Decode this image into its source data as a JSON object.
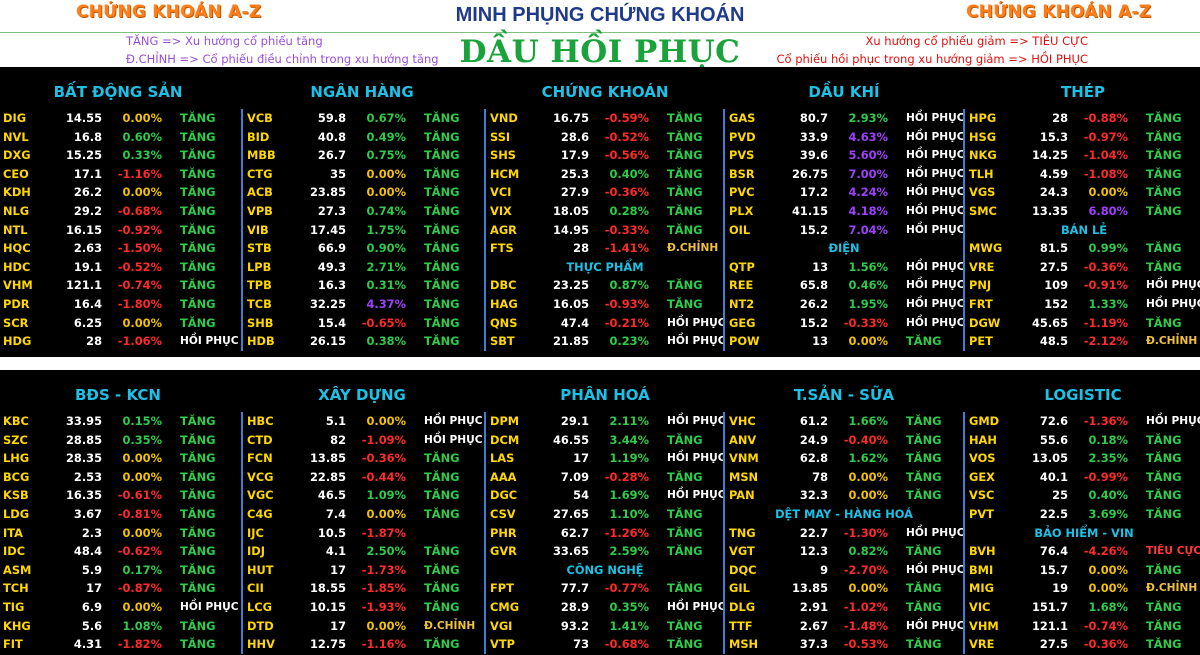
{
  "header": {
    "brand_left": "CHỨNG KHOÁN A-Z",
    "brand_right": "CHỨNG KHOÁN A-Z",
    "title": "MINH PHỤNG CHỨNG KHOÁN",
    "big_title": "DẦU HỒI PHỤC",
    "legend_left_1": "TĂNG => Xu hướng cổ phiếu tăng",
    "legend_left_2": "Đ.CHỈNH => Cổ phiếu điều chỉnh trong xu hướng tăng",
    "legend_right_1": "Xu hướng cổ phiếu giảm => TIÊU CỰC",
    "legend_right_2": "Cổ phiếu hồi phục trong xu hướng giảm => HỒI PHỤC"
  },
  "colors": {
    "brand": "#ff7d1a",
    "title": "#1f3a8a",
    "big_title": "#1aa33a",
    "positive": "#2ecc4a",
    "negative": "#ff2a2a",
    "zero": "#f2c200",
    "strong": "#a040ff",
    "ticker": "#ffd700",
    "subsection": "#1ec0e6"
  },
  "panels": [
    {
      "columns": [
        {
          "header": "BẤT ĐỘNG SẢN",
          "items": [
            {
              "t": "DIG",
              "p": "14.55",
              "c": "0.00%",
              "s": "TĂNG"
            },
            {
              "t": "NVL",
              "p": "16.8",
              "c": "0.60%",
              "s": "TĂNG"
            },
            {
              "t": "DXG",
              "p": "15.25",
              "c": "0.33%",
              "s": "TĂNG"
            },
            {
              "t": "CEO",
              "p": "17.1",
              "c": "-1.16%",
              "s": "TĂNG"
            },
            {
              "t": "KDH",
              "p": "26.2",
              "c": "0.00%",
              "s": "TĂNG"
            },
            {
              "t": "NLG",
              "p": "29.2",
              "c": "-0.68%",
              "s": "TĂNG"
            },
            {
              "t": "NTL",
              "p": "16.15",
              "c": "-0.92%",
              "s": "TĂNG"
            },
            {
              "t": "HQC",
              "p": "2.63",
              "c": "-1.50%",
              "s": "TĂNG"
            },
            {
              "t": "HDC",
              "p": "19.1",
              "c": "-0.52%",
              "s": "TĂNG"
            },
            {
              "t": "VHM",
              "p": "121.1",
              "c": "-0.74%",
              "s": "TĂNG"
            },
            {
              "t": "PDR",
              "p": "16.4",
              "c": "-1.80%",
              "s": "TĂNG"
            },
            {
              "t": "SCR",
              "p": "6.25",
              "c": "0.00%",
              "s": "TĂNG"
            },
            {
              "t": "HDG",
              "p": "28",
              "c": "-1.06%",
              "s": "HỒI PHỤC"
            }
          ]
        },
        {
          "header": "NGÂN HÀNG",
          "items": [
            {
              "t": "VCB",
              "p": "59.8",
              "c": "0.67%",
              "s": "TĂNG"
            },
            {
              "t": "BID",
              "p": "40.8",
              "c": "0.49%",
              "s": "TĂNG"
            },
            {
              "t": "MBB",
              "p": "26.7",
              "c": "0.75%",
              "s": "TĂNG"
            },
            {
              "t": "CTG",
              "p": "35",
              "c": "0.00%",
              "s": "TĂNG"
            },
            {
              "t": "ACB",
              "p": "23.85",
              "c": "0.00%",
              "s": "TĂNG"
            },
            {
              "t": "VPB",
              "p": "27.3",
              "c": "0.74%",
              "s": "TĂNG"
            },
            {
              "t": "VIB",
              "p": "17.45",
              "c": "1.75%",
              "s": "TĂNG"
            },
            {
              "t": "STB",
              "p": "66.9",
              "c": "0.90%",
              "s": "TĂNG"
            },
            {
              "t": "LPB",
              "p": "49.3",
              "c": "2.71%",
              "s": "TĂNG"
            },
            {
              "t": "TPB",
              "p": "16.3",
              "c": "0.31%",
              "s": "TĂNG"
            },
            {
              "t": "TCB",
              "p": "32.25",
              "c": "4.37%",
              "s": "TĂNG"
            },
            {
              "t": "SHB",
              "p": "15.4",
              "c": "-0.65%",
              "s": "TĂNG"
            },
            {
              "t": "HDB",
              "p": "26.15",
              "c": "0.38%",
              "s": "TĂNG"
            }
          ]
        },
        {
          "header": "CHỨNG KHOÁN",
          "items": [
            {
              "t": "VND",
              "p": "16.75",
              "c": "-0.59%",
              "s": "TĂNG"
            },
            {
              "t": "SSI",
              "p": "28.6",
              "c": "-0.52%",
              "s": "TĂNG"
            },
            {
              "t": "SHS",
              "p": "17.9",
              "c": "-0.56%",
              "s": "TĂNG"
            },
            {
              "t": "HCM",
              "p": "25.3",
              "c": "0.40%",
              "s": "TĂNG"
            },
            {
              "t": "VCI",
              "p": "27.9",
              "c": "-0.36%",
              "s": "TĂNG"
            },
            {
              "t": "VIX",
              "p": "18.05",
              "c": "0.28%",
              "s": "TĂNG"
            },
            {
              "t": "AGR",
              "p": "14.95",
              "c": "-0.33%",
              "s": "TĂNG"
            },
            {
              "t": "FTS",
              "p": "28",
              "c": "-1.41%",
              "s": "Đ.CHỈNH"
            },
            {
              "sub": "THỰC PHẨM"
            },
            {
              "t": "DBC",
              "p": "23.25",
              "c": "0.87%",
              "s": "TĂNG"
            },
            {
              "t": "HAG",
              "p": "16.05",
              "c": "-0.93%",
              "s": "TĂNG"
            },
            {
              "t": "QNS",
              "p": "47.4",
              "c": "-0.21%",
              "s": "HỒI PHỤC"
            },
            {
              "t": "SBT",
              "p": "21.85",
              "c": "0.23%",
              "s": "HỒI PHỤC"
            }
          ]
        },
        {
          "header": "DẦU KHÍ",
          "items": [
            {
              "t": "GAS",
              "p": "80.7",
              "c": "2.93%",
              "s": "HỒI PHỤC"
            },
            {
              "t": "PVD",
              "p": "33.9",
              "c": "4.63%",
              "s": "HỒI PHỤC"
            },
            {
              "t": "PVS",
              "p": "39.6",
              "c": "5.60%",
              "s": "HỒI PHỤC"
            },
            {
              "t": "BSR",
              "p": "26.75",
              "c": "7.00%",
              "s": "HỒI PHỤC"
            },
            {
              "t": "PVC",
              "p": "17.2",
              "c": "4.24%",
              "s": "HỒI PHỤC"
            },
            {
              "t": "PLX",
              "p": "41.15",
              "c": "4.18%",
              "s": "HỒI PHỤC"
            },
            {
              "t": "OIL",
              "p": "15.2",
              "c": "7.04%",
              "s": "HỒI PHỤC"
            },
            {
              "sub": "ĐIỆN"
            },
            {
              "t": "QTP",
              "p": "13",
              "c": "1.56%",
              "s": "HỒI PHỤC"
            },
            {
              "t": "REE",
              "p": "65.8",
              "c": "0.46%",
              "s": "HỒI PHỤC"
            },
            {
              "t": "NT2",
              "p": "26.2",
              "c": "1.95%",
              "s": "HỒI PHỤC"
            },
            {
              "t": "GEG",
              "p": "15.2",
              "c": "-0.33%",
              "s": "HỒI PHỤC"
            },
            {
              "t": "POW",
              "p": "13",
              "c": "0.00%",
              "s": "TĂNG"
            }
          ]
        },
        {
          "header": "THÉP",
          "items": [
            {
              "t": "HPG",
              "p": "28",
              "c": "-0.88%",
              "s": "TĂNG"
            },
            {
              "t": "HSG",
              "p": "15.3",
              "c": "-0.97%",
              "s": "TĂNG"
            },
            {
              "t": "NKG",
              "p": "14.25",
              "c": "-1.04%",
              "s": "TĂNG"
            },
            {
              "t": "TLH",
              "p": "4.59",
              "c": "-1.08%",
              "s": "TĂNG"
            },
            {
              "t": "VGS",
              "p": "24.3",
              "c": "0.00%",
              "s": "TĂNG"
            },
            {
              "t": "SMC",
              "p": "13.35",
              "c": "6.80%",
              "s": "TĂNG"
            },
            {
              "sub": "BÁN LẺ"
            },
            {
              "t": "MWG",
              "p": "81.5",
              "c": "0.99%",
              "s": "TĂNG"
            },
            {
              "t": "VRE",
              "p": "27.5",
              "c": "-0.36%",
              "s": "TĂNG"
            },
            {
              "t": "PNJ",
              "p": "109",
              "c": "-0.91%",
              "s": "HỒI PHỤC"
            },
            {
              "t": "FRT",
              "p": "152",
              "c": "1.33%",
              "s": "HỒI PHỤC"
            },
            {
              "t": "DGW",
              "p": "45.65",
              "c": "-1.19%",
              "s": "TĂNG"
            },
            {
              "t": "PET",
              "p": "48.5",
              "c": "-2.12%",
              "s": "Đ.CHỈNH"
            }
          ]
        }
      ]
    },
    {
      "columns": [
        {
          "header": "BĐS - KCN",
          "items": [
            {
              "t": "KBC",
              "p": "33.95",
              "c": "0.15%",
              "s": "TĂNG"
            },
            {
              "t": "SZC",
              "p": "28.85",
              "c": "0.35%",
              "s": "TĂNG"
            },
            {
              "t": "LHG",
              "p": "28.35",
              "c": "0.00%",
              "s": "TĂNG"
            },
            {
              "t": "BCG",
              "p": "2.53",
              "c": "0.00%",
              "s": "TĂNG"
            },
            {
              "t": "KSB",
              "p": "16.35",
              "c": "-0.61%",
              "s": "TĂNG"
            },
            {
              "t": "LDG",
              "p": "3.67",
              "c": "-0.81%",
              "s": "TĂNG"
            },
            {
              "t": "ITA",
              "p": "2.3",
              "c": "0.00%",
              "s": "TĂNG"
            },
            {
              "t": "IDC",
              "p": "48.4",
              "c": "-0.62%",
              "s": "TĂNG"
            },
            {
              "t": "ASM",
              "p": "5.9",
              "c": "0.17%",
              "s": "TĂNG"
            },
            {
              "t": "TCH",
              "p": "17",
              "c": "-0.87%",
              "s": "TĂNG"
            },
            {
              "t": "TIG",
              "p": "6.9",
              "c": "0.00%",
              "s": "HỒI PHỤC"
            },
            {
              "t": "KHG",
              "p": "5.6",
              "c": "1.08%",
              "s": "TĂNG"
            },
            {
              "t": "FIT",
              "p": "4.31",
              "c": "-1.82%",
              "s": "TĂNG"
            }
          ]
        },
        {
          "header": "XÂY DỰNG",
          "items": [
            {
              "t": "HBC",
              "p": "5.1",
              "c": "0.00%",
              "s": "HỒI PHỤC"
            },
            {
              "t": "CTD",
              "p": "82",
              "c": "-1.09%",
              "s": "HỒI PHỤC"
            },
            {
              "t": "FCN",
              "p": "13.85",
              "c": "-0.36%",
              "s": "TĂNG"
            },
            {
              "t": "VCG",
              "p": "22.85",
              "c": "-0.44%",
              "s": "TĂNG"
            },
            {
              "t": "VGC",
              "p": "46.5",
              "c": "1.09%",
              "s": "TĂNG"
            },
            {
              "t": "C4G",
              "p": "7.4",
              "c": "0.00%",
              "s": "TĂNG"
            },
            {
              "t": "IJC",
              "p": "10.5",
              "c": "-1.87%",
              "s": ""
            },
            {
              "t": "IDJ",
              "p": "4.1",
              "c": "2.50%",
              "s": "TĂNG"
            },
            {
              "t": "HUT",
              "p": "17",
              "c": "-1.73%",
              "s": "TĂNG"
            },
            {
              "t": "CII",
              "p": "18.55",
              "c": "-1.85%",
              "s": "TĂNG"
            },
            {
              "t": "LCG",
              "p": "10.15",
              "c": "-1.93%",
              "s": "TĂNG"
            },
            {
              "t": "DTD",
              "p": "17",
              "c": "0.00%",
              "s": "Đ.CHỈNH"
            },
            {
              "t": "HHV",
              "p": "12.75",
              "c": "-1.16%",
              "s": "TĂNG"
            }
          ]
        },
        {
          "header": "PHÂN HOÁ",
          "items": [
            {
              "t": "DPM",
              "p": "29.1",
              "c": "2.11%",
              "s": "HỒI PHỤC"
            },
            {
              "t": "DCM",
              "p": "46.55",
              "c": "3.44%",
              "s": "TĂNG"
            },
            {
              "t": "LAS",
              "p": "17",
              "c": "1.19%",
              "s": "HỒI PHỤC"
            },
            {
              "t": "AAA",
              "p": "7.09",
              "c": "-0.28%",
              "s": "TĂNG"
            },
            {
              "t": "DGC",
              "p": "54",
              "c": "1.69%",
              "s": "HỒI PHỤC"
            },
            {
              "t": "CSV",
              "p": "27.65",
              "c": "1.10%",
              "s": "TĂNG"
            },
            {
              "t": "PHR",
              "p": "62.7",
              "c": "-1.26%",
              "s": "TĂNG"
            },
            {
              "t": "GVR",
              "p": "33.65",
              "c": "2.59%",
              "s": "TĂNG"
            },
            {
              "sub": "CÔNG NGHỆ"
            },
            {
              "t": "FPT",
              "p": "77.7",
              "c": "-0.77%",
              "s": "TĂNG"
            },
            {
              "t": "CMG",
              "p": "28.9",
              "c": "0.35%",
              "s": "HỒI PHỤC"
            },
            {
              "t": "VGI",
              "p": "93.2",
              "c": "1.41%",
              "s": "TĂNG"
            },
            {
              "t": "VTP",
              "p": "73",
              "c": "-0.68%",
              "s": "TĂNG"
            }
          ]
        },
        {
          "header": "T.SẢN - SỮA",
          "items": [
            {
              "t": "VHC",
              "p": "61.2",
              "c": "1.66%",
              "s": "TĂNG"
            },
            {
              "t": "ANV",
              "p": "24.9",
              "c": "-0.40%",
              "s": "TĂNG"
            },
            {
              "t": "VNM",
              "p": "62.8",
              "c": "1.62%",
              "s": "TĂNG"
            },
            {
              "t": "MSN",
              "p": "78",
              "c": "0.00%",
              "s": "TĂNG"
            },
            {
              "t": "PAN",
              "p": "32.3",
              "c": "0.00%",
              "s": "TĂNG"
            },
            {
              "sub": "DỆT MAY - HÀNG HOÁ"
            },
            {
              "t": "TNG",
              "p": "22.7",
              "c": "-1.30%",
              "s": "HỒI PHỤC"
            },
            {
              "t": "VGT",
              "p": "12.3",
              "c": "0.82%",
              "s": "TĂNG"
            },
            {
              "t": "DQC",
              "p": "9",
              "c": "-2.70%",
              "s": "HỒI PHỤC"
            },
            {
              "t": "GIL",
              "p": "13.85",
              "c": "0.00%",
              "s": "TĂNG"
            },
            {
              "t": "DLG",
              "p": "2.91",
              "c": "-1.02%",
              "s": "TĂNG"
            },
            {
              "t": "TTF",
              "p": "2.67",
              "c": "-1.48%",
              "s": "HỒI PHỤC"
            },
            {
              "t": "MSH",
              "p": "37.3",
              "c": "-0.53%",
              "s": "TĂNG"
            }
          ]
        },
        {
          "header": "LOGISTIC",
          "items": [
            {
              "t": "GMD",
              "p": "72.6",
              "c": "-1.36%",
              "s": "HỒI PHỤC"
            },
            {
              "t": "HAH",
              "p": "55.6",
              "c": "0.18%",
              "s": "TĂNG"
            },
            {
              "t": "VOS",
              "p": "13.05",
              "c": "2.35%",
              "s": "TĂNG"
            },
            {
              "t": "GEX",
              "p": "40.1",
              "c": "-0.99%",
              "s": "TĂNG"
            },
            {
              "t": "VSC",
              "p": "25",
              "c": "0.40%",
              "s": "TĂNG"
            },
            {
              "t": "PVT",
              "p": "22.5",
              "c": "3.69%",
              "s": "TĂNG"
            },
            {
              "sub": "BẢO HIỂM - VIN"
            },
            {
              "t": "BVH",
              "p": "76.4",
              "c": "-4.26%",
              "s": "TIÊU CỰC"
            },
            {
              "t": "BMI",
              "p": "15.7",
              "c": "0.00%",
              "s": "TĂNG"
            },
            {
              "t": "MIG",
              "p": "19",
              "c": "0.00%",
              "s": "Đ.CHỈNH"
            },
            {
              "t": "VIC",
              "p": "151.7",
              "c": "1.68%",
              "s": "TĂNG"
            },
            {
              "t": "VHM",
              "p": "121.1",
              "c": "-0.74%",
              "s": "TĂNG"
            },
            {
              "t": "VRE",
              "p": "27.5",
              "c": "-0.36%",
              "s": "TĂNG"
            }
          ]
        }
      ]
    }
  ]
}
